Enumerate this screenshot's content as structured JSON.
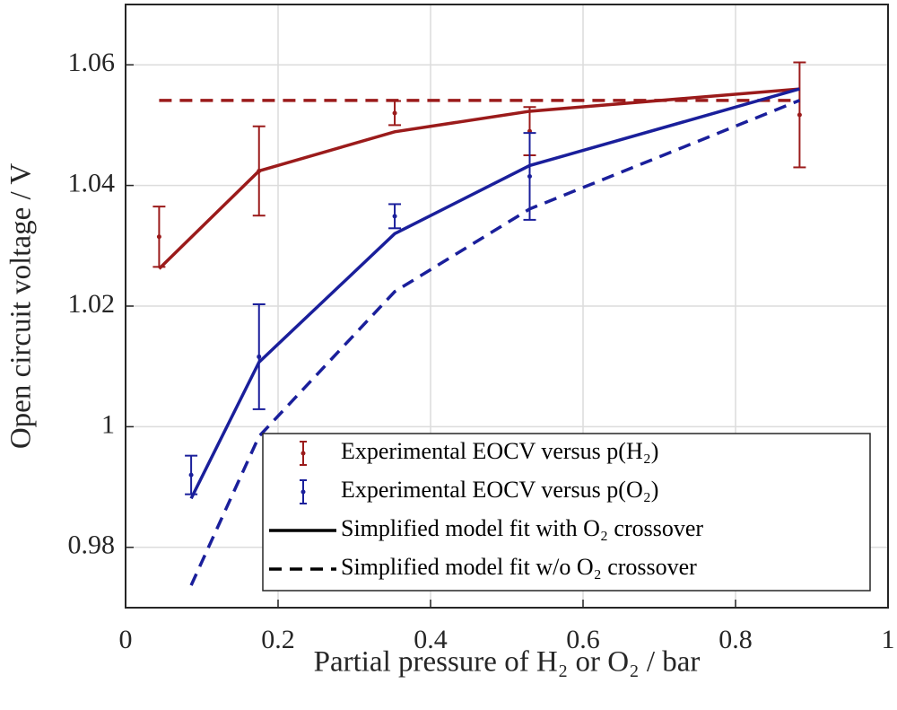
{
  "chart_data": {
    "type": "line",
    "xlabel": "Partial pressure of H₂ or O₂ / bar",
    "ylabel": "Open circuit voltage / V",
    "xlim": [
      0,
      1
    ],
    "ylim": [
      0.97,
      1.07
    ],
    "xticks": [
      0,
      0.2,
      0.4,
      0.6,
      0.8,
      1
    ],
    "yticks": [
      0.98,
      1,
      1.02,
      1.04,
      1.06
    ],
    "grid": true,
    "legend_position": "lower right",
    "series": [
      {
        "name": "Experimental EOCV versus p(H₂)",
        "color": "#9b1b1b",
        "style": "errorbar",
        "x": [
          0.044,
          0.175,
          0.353,
          0.53,
          0.884
        ],
        "values": [
          1.0315,
          1.0424,
          1.052,
          1.049,
          1.0517
        ],
        "errors": [
          0.005,
          0.0074,
          0.002,
          0.004,
          0.0087
        ]
      },
      {
        "name": "Experimental EOCV versus p(O₂)",
        "color": "#1a1f9b",
        "style": "errorbar",
        "x": [
          0.086,
          0.175,
          0.353,
          0.53
        ],
        "values": [
          0.992,
          1.0116,
          1.0349,
          1.0415
        ],
        "errors": [
          0.0032,
          0.0087,
          0.002,
          0.0072
        ]
      },
      {
        "color": "#9b1b1b",
        "style": "solid",
        "x": [
          0.044,
          0.175,
          0.353,
          0.53,
          0.884
        ],
        "values": [
          1.0262,
          1.0424,
          1.0489,
          1.0523,
          1.056
        ]
      },
      {
        "color": "#9b1b1b",
        "style": "dashed",
        "x": [
          0.044,
          0.884
        ],
        "values": [
          1.0541,
          1.0541
        ]
      },
      {
        "color": "#1a1f9b",
        "style": "solid",
        "x": [
          0.086,
          0.175,
          0.353,
          0.53,
          0.884
        ],
        "values": [
          0.9881,
          1.0107,
          1.032,
          1.0433,
          1.056
        ]
      },
      {
        "color": "#1a1f9b",
        "style": "dashed",
        "x": [
          0.086,
          0.175,
          0.353,
          0.53,
          0.884
        ],
        "values": [
          0.9737,
          0.9984,
          1.0224,
          1.0361,
          1.0541
        ]
      }
    ],
    "legend": [
      {
        "label": "Experimental EOCV versus p(H₂)",
        "color": "#9b1b1b",
        "style": "errorbar"
      },
      {
        "label": "Experimental EOCV versus p(O₂)",
        "color": "#1a1f9b",
        "style": "errorbar"
      },
      {
        "label": "Simplified model fit with O₂ crossover",
        "color": "#000000",
        "style": "solid"
      },
      {
        "label": "Simplified model fit w/o O₂ crossover",
        "color": "#000000",
        "style": "dashed"
      }
    ]
  }
}
